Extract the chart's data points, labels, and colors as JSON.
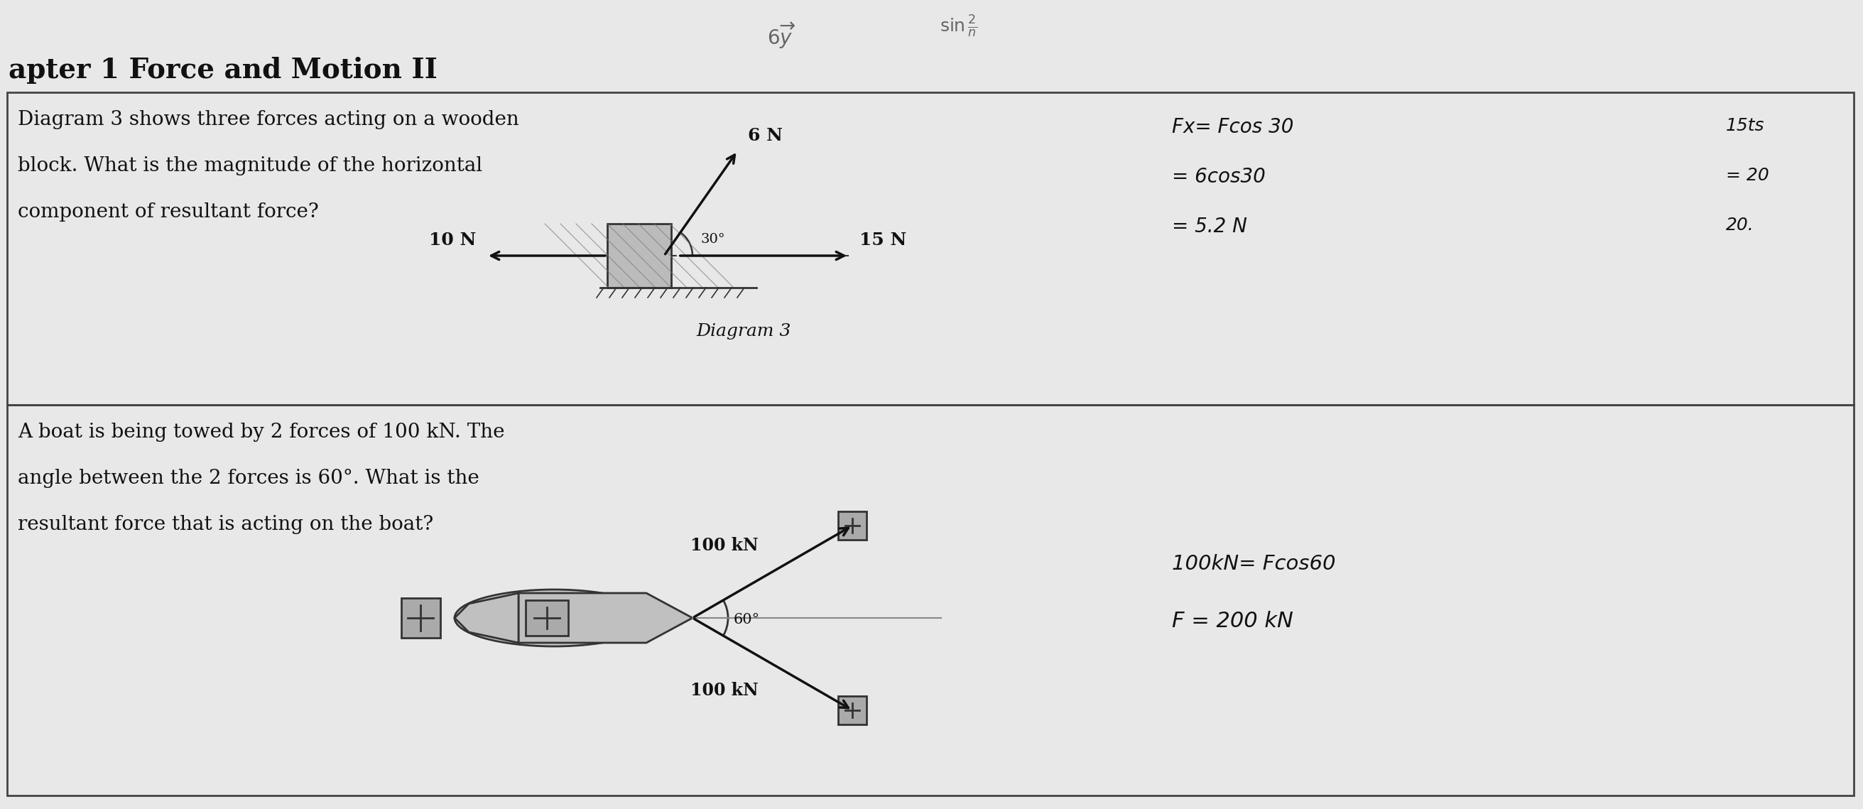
{
  "bg_color": "#e8e8e8",
  "paper_color": "#e0e0e0",
  "title": "apter 1 Force and Motion II",
  "title_fontsize": 28,
  "title_color": "#111111",
  "section1_text_line1": "Diagram 3 shows three forces acting on a wooden",
  "section1_text_line2": "block. What is the magnitude of the horizontal",
  "section1_text_line3": "component of resultant force?",
  "section2_text_line1": "A boat is being towed by 2 forces of 100 kN. The",
  "section2_text_line2": "angle between the 2 forces is 60°. What is the",
  "section2_text_line3": "resultant force that is acting on the boat?",
  "diagram3_label": "Diagram 3",
  "force_6N_label": "6 N",
  "force_10N_label": "10 N",
  "force_15N_label": "15 N",
  "angle_30_label": "30°",
  "force_100kN_label": "100 kN",
  "angle_60_label": "60°",
  "hw1_line1": "Fx= Fcos 30",
  "hw1_line2": "= 6cos30",
  "hw1_line3": "= 5.2 N",
  "hw1_right1": "15ts",
  "hw1_right2": "= 20",
  "hw1_right3": "20.",
  "hw2_line1": "100kN= Fcos60",
  "hw2_line2": "F = 200 kN",
  "text_fontsize": 20,
  "line_color": "#444444"
}
